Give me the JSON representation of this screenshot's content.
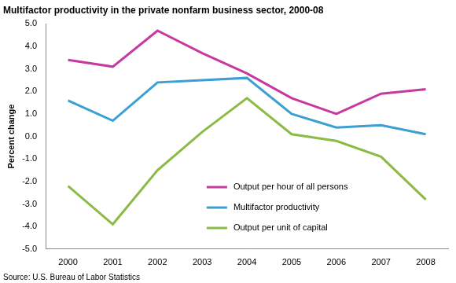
{
  "chart_data": {
    "type": "line",
    "title": "Multifactor productivity in the private nonfarm business sector, 2000-08",
    "y_label": "Percent change",
    "source": "Source: U.S. Bureau of Labor Statistics",
    "categories": [
      "2000",
      "2001",
      "2002",
      "2003",
      "2004",
      "2005",
      "2006",
      "2007",
      "2008"
    ],
    "series": [
      {
        "name": "Output per hour of all persons",
        "color": "#c8399f",
        "values": [
          3.4,
          3.1,
          4.7,
          3.7,
          2.8,
          1.7,
          1.0,
          1.9,
          2.1
        ]
      },
      {
        "name": "Multifactor productivity",
        "color": "#3b9fd3",
        "values": [
          1.6,
          0.7,
          2.4,
          2.5,
          2.6,
          1.0,
          0.4,
          0.5,
          0.1
        ]
      },
      {
        "name": "Output per unit of capital",
        "color": "#8cbb45",
        "values": [
          -2.2,
          -3.9,
          -1.5,
          0.2,
          1.7,
          0.1,
          -0.2,
          -0.9,
          -2.8
        ]
      }
    ],
    "ylim": [
      -5,
      5
    ],
    "yticks": [
      {
        "value": -5,
        "label": "-5.0"
      },
      {
        "value": -4,
        "label": "-4.0"
      },
      {
        "value": -3,
        "label": "-3.0"
      },
      {
        "value": -2,
        "label": "-2.0"
      },
      {
        "value": -1,
        "label": "-1.0"
      },
      {
        "value": 0,
        "label": "0.0"
      },
      {
        "value": 1,
        "label": "1.0"
      },
      {
        "value": 2,
        "label": "2.0"
      },
      {
        "value": 3,
        "label": "3.0"
      },
      {
        "value": 4,
        "label": "4.0"
      },
      {
        "value": 5,
        "label": "5.0"
      }
    ],
    "grid": false,
    "legend": "lower right"
  }
}
